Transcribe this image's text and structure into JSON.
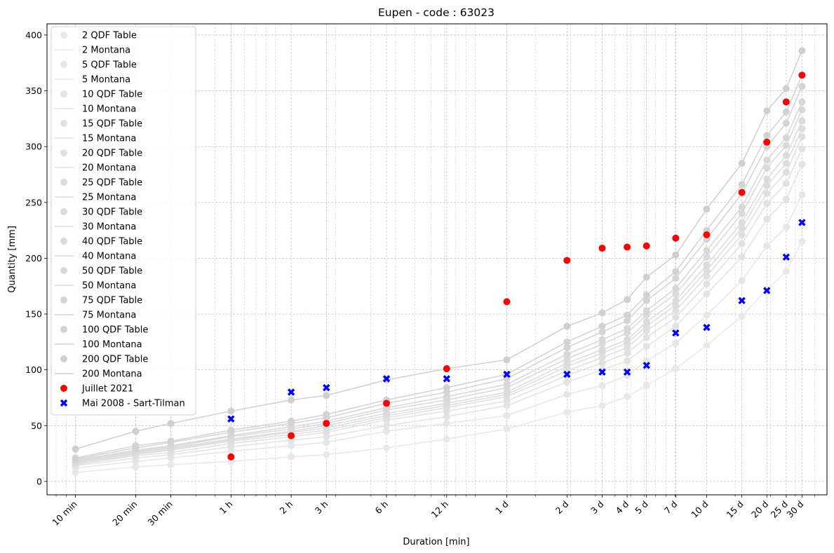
{
  "chart_data": {
    "type": "scatter",
    "title": "Eupen - code : 63023",
    "xlabel": "Duration [min]",
    "ylabel": "Quantity [mm]",
    "x_scale": "log",
    "xlim_min": [
      7.2,
      57600
    ],
    "ylim": [
      -12,
      410
    ],
    "grid": true,
    "legend_position": "top-left",
    "x_ticks": [
      {
        "value": 10,
        "label": "10 min"
      },
      {
        "value": 20,
        "label": "20 min"
      },
      {
        "value": 30,
        "label": "30 min"
      },
      {
        "value": 60,
        "label": "1 h"
      },
      {
        "value": 120,
        "label": "2 h"
      },
      {
        "value": 180,
        "label": "3 h"
      },
      {
        "value": 360,
        "label": "6 h"
      },
      {
        "value": 720,
        "label": "12 h"
      },
      {
        "value": 1440,
        "label": "1 d"
      },
      {
        "value": 2880,
        "label": "2 d"
      },
      {
        "value": 4320,
        "label": "3 d"
      },
      {
        "value": 5760,
        "label": "4 d"
      },
      {
        "value": 7200,
        "label": "5 d"
      },
      {
        "value": 10080,
        "label": "7 d"
      },
      {
        "value": 14400,
        "label": "10 d"
      },
      {
        "value": 21600,
        "label": "15 d"
      },
      {
        "value": 28800,
        "label": "20 d"
      },
      {
        "value": 36000,
        "label": "25 d"
      },
      {
        "value": 43200,
        "label": "30 d"
      }
    ],
    "y_ticks": [
      0,
      50,
      100,
      150,
      200,
      250,
      300,
      350,
      400
    ],
    "durations_min": [
      10,
      20,
      30,
      60,
      120,
      180,
      360,
      720,
      1440,
      2880,
      4320,
      5760,
      7200,
      10080,
      14400,
      21600,
      28800,
      36000,
      43200
    ],
    "return_periods": [
      {
        "T": "2",
        "qdf_label": "2 QDF Table",
        "montana_label": "2 Montana",
        "shade": "#e8e8e8",
        "values": [
          8,
          13,
          15,
          18,
          22,
          24,
          30,
          38,
          47,
          62,
          68,
          76,
          86,
          101,
          122,
          148,
          172,
          188,
          215
        ]
      },
      {
        "T": "5",
        "qdf_label": "5 QDF Table",
        "montana_label": "5 Montana",
        "shade": "#e6e6e6",
        "values": [
          12,
          18,
          21,
          27,
          32,
          35,
          45,
          52,
          59,
          78,
          86,
          95,
          108,
          124,
          149,
          180,
          211,
          228,
          257
        ]
      },
      {
        "T": "10",
        "qdf_label": "10 QDF Table",
        "montana_label": "10 Montana",
        "shade": "#e3e3e3",
        "values": [
          14,
          21,
          24,
          31,
          37,
          40,
          50,
          58,
          68,
          89,
          100,
          108,
          121,
          139,
          168,
          201,
          235,
          253,
          284
        ]
      },
      {
        "T": "15",
        "qdf_label": "15 QDF Table",
        "montana_label": "15 Montana",
        "shade": "#e1e1e1",
        "values": [
          15,
          23,
          26,
          34,
          40,
          44,
          55,
          63,
          72,
          95,
          106,
          115,
          129,
          147,
          177,
          213,
          249,
          267,
          298
        ]
      },
      {
        "T": "20",
        "qdf_label": "20 QDF Table",
        "montana_label": "20 Montana",
        "shade": "#dfdfdf",
        "values": [
          16,
          24,
          28,
          36,
          42,
          46,
          57,
          66,
          76,
          99,
          111,
          120,
          135,
          153,
          184,
          221,
          258,
          277,
          309
        ]
      },
      {
        "T": "25",
        "qdf_label": "25 QDF Table",
        "montana_label": "25 Montana",
        "shade": "#dddddd",
        "values": [
          17,
          25,
          29,
          37,
          44,
          48,
          59,
          68,
          78,
          103,
          115,
          124,
          139,
          158,
          189,
          227,
          265,
          285,
          316
        ]
      },
      {
        "T": "30",
        "qdf_label": "30 QDF Table",
        "montana_label": "30 Montana",
        "shade": "#dbdbdb",
        "values": [
          17,
          26,
          30,
          38,
          45,
          50,
          61,
          70,
          80,
          106,
          118,
          127,
          143,
          162,
          194,
          232,
          271,
          292,
          323
        ]
      },
      {
        "T": "40",
        "qdf_label": "40 QDF Table",
        "montana_label": "40 Montana",
        "shade": "#d9d9d9",
        "values": [
          18,
          27,
          31,
          40,
          47,
          52,
          64,
          73,
          84,
          110,
          123,
          133,
          149,
          168,
          201,
          240,
          281,
          301,
          333
        ]
      },
      {
        "T": "50",
        "qdf_label": "50 QDF Table",
        "montana_label": "50 Montana",
        "shade": "#d7d7d7",
        "values": [
          19,
          28,
          32,
          41,
          49,
          54,
          66,
          76,
          87,
          114,
          127,
          137,
          153,
          173,
          207,
          246,
          288,
          308,
          340
        ]
      },
      {
        "T": "75",
        "qdf_label": "75 QDF Table",
        "montana_label": "75 Montana",
        "shade": "#d4d4d4",
        "values": [
          20,
          30,
          35,
          44,
          52,
          57,
          70,
          80,
          92,
          120,
          134,
          144,
          162,
          182,
          217,
          258,
          300,
          321,
          354
        ]
      },
      {
        "T": "100",
        "qdf_label": "100 QDF Table",
        "montana_label": "100 Montana",
        "shade": "#d2d2d2",
        "values": [
          21,
          32,
          36,
          46,
          54,
          60,
          73,
          84,
          96,
          125,
          139,
          149,
          167,
          188,
          225,
          266,
          310,
          331,
          364
        ]
      },
      {
        "T": "200",
        "qdf_label": "200 QDF Table",
        "montana_label": "200 Montana",
        "shade": "#cfcfcf",
        "values": [
          29,
          45,
          52,
          63,
          73,
          77,
          91,
          101,
          109,
          139,
          151,
          163,
          183,
          203,
          244,
          285,
          332,
          352,
          386
        ]
      }
    ],
    "series": [
      {
        "name": "Juillet 2021",
        "color": "#ff0000",
        "marker": "circle",
        "x": [
          60,
          120,
          180,
          360,
          720,
          1440,
          2880,
          4320,
          5760,
          7200,
          10080,
          14400,
          21600,
          28800,
          36000,
          43200
        ],
        "y": [
          22,
          41,
          52,
          70,
          101,
          161,
          198,
          209,
          210,
          211,
          218,
          221,
          259,
          304,
          340,
          364
        ]
      },
      {
        "name": "Mai 2008 - Sart-Tilman",
        "color": "#0000ff",
        "marker": "x",
        "x": [
          60,
          120,
          180,
          360,
          720,
          1440,
          2880,
          4320,
          5760,
          7200,
          10080,
          14400,
          21600,
          28800,
          36000,
          43200
        ],
        "y": [
          56,
          80,
          84,
          92,
          92,
          96,
          96,
          98,
          98,
          104,
          133,
          138,
          162,
          171,
          201,
          232
        ]
      }
    ]
  }
}
